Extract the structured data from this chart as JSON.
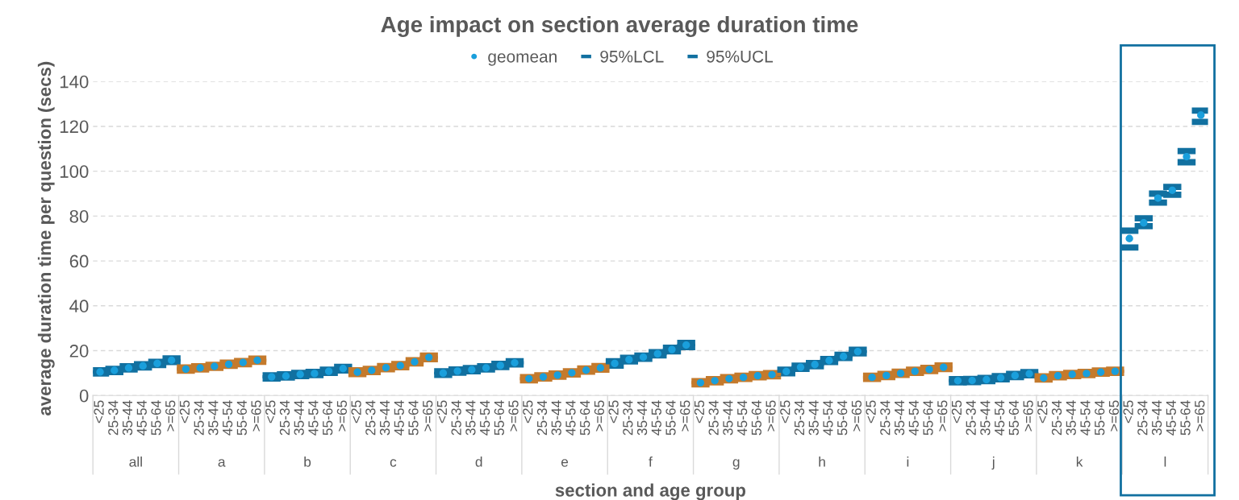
{
  "chart_data": {
    "type": "scatter",
    "title": "Age impact on section average duration time",
    "xlabel": "section and age group",
    "ylabel": "average duration time per question (secs)",
    "categories": [
      "<25",
      "25-34",
      "35-44",
      "45-54",
      "55-64",
      ">=65",
      "<25",
      "25-34",
      "35-44",
      "45-54",
      "55-64",
      ">=65",
      "<25",
      "25-34",
      "35-44",
      "45-54",
      "55-64",
      ">=65",
      "<25",
      "25-34",
      "35-44",
      "45-54",
      "55-64",
      ">=65",
      "<25",
      "25-34",
      "35-44",
      "45-54",
      "55-64",
      ">=65",
      "<25",
      "25-34",
      "35-44",
      "45-54",
      "55-64",
      ">=65",
      "<25",
      "25-34",
      "35-44",
      "45-54",
      "55-64",
      ">=65",
      "<25",
      "25-34",
      "35-44",
      "45-54",
      "55-64",
      ">=65",
      "<25",
      "25-34",
      "35-44",
      "45-54",
      "55-64",
      ">=65",
      "<25",
      "25-34",
      "35-44",
      "45-54",
      "55-64",
      ">=65",
      "<25",
      "25-34",
      "35-44",
      "45-54",
      "55-64",
      ">=65",
      "<25",
      "25-34",
      "35-44",
      "45-54",
      "55-64",
      ">=65",
      "<25",
      "25-34",
      "35-44",
      "45-54",
      "55-64",
      ">=65"
    ],
    "annotations": [
      "all",
      "a",
      "b",
      "c",
      "d",
      "e",
      "f",
      "g",
      "h",
      "i",
      "j",
      "k",
      "l"
    ],
    "series": [
      {
        "name": "geomean",
        "marker": "circle",
        "color": "#1a9fdc",
        "values": [
          10.5,
          11.2,
          12.3,
          13.2,
          14.3,
          15.7,
          11.8,
          12.3,
          13.0,
          13.9,
          14.7,
          15.7,
          8.3,
          8.7,
          9.4,
          9.8,
          10.8,
          12.0,
          10.4,
          11.2,
          12.4,
          13.3,
          15.0,
          17.0,
          10.0,
          10.9,
          11.5,
          12.3,
          13.4,
          14.6,
          7.5,
          8.3,
          9.1,
          10.1,
          11.3,
          12.3,
          14.3,
          16.0,
          17.1,
          18.6,
          20.5,
          22.5,
          5.7,
          6.6,
          7.5,
          8.1,
          8.8,
          9.3,
          10.7,
          12.6,
          13.8,
          15.6,
          17.4,
          19.6,
          8.1,
          8.9,
          9.9,
          10.8,
          11.6,
          12.6,
          6.6,
          6.7,
          7.1,
          7.9,
          8.9,
          9.7,
          7.8,
          8.8,
          9.4,
          9.8,
          10.4,
          10.8,
          70,
          77,
          88,
          91.5,
          106.5,
          125
        ]
      },
      {
        "name": "95%LCL",
        "marker": "square",
        "color": "#1170a0",
        "colors": [
          "#1170a0",
          "#1170a0",
          "#1170a0",
          "#1170a0",
          "#1170a0",
          "#1170a0",
          "#c47a2c",
          "#c47a2c",
          "#c47a2c",
          "#c47a2c",
          "#c47a2c",
          "#c47a2c",
          "#1170a0",
          "#1170a0",
          "#1170a0",
          "#1170a0",
          "#1170a0",
          "#1170a0",
          "#c47a2c",
          "#c47a2c",
          "#c47a2c",
          "#c47a2c",
          "#c47a2c",
          "#c47a2c",
          "#1170a0",
          "#1170a0",
          "#1170a0",
          "#1170a0",
          "#1170a0",
          "#1170a0",
          "#c47a2c",
          "#c47a2c",
          "#c47a2c",
          "#c47a2c",
          "#c47a2c",
          "#c47a2c",
          "#1170a0",
          "#1170a0",
          "#1170a0",
          "#1170a0",
          "#1170a0",
          "#1170a0",
          "#c47a2c",
          "#c47a2c",
          "#c47a2c",
          "#c47a2c",
          "#c47a2c",
          "#c47a2c",
          "#1170a0",
          "#1170a0",
          "#1170a0",
          "#1170a0",
          "#1170a0",
          "#1170a0",
          "#c47a2c",
          "#c47a2c",
          "#c47a2c",
          "#c47a2c",
          "#c47a2c",
          "#c47a2c",
          "#1170a0",
          "#1170a0",
          "#1170a0",
          "#1170a0",
          "#1170a0",
          "#1170a0",
          "#c47a2c",
          "#c47a2c",
          "#c47a2c",
          "#c47a2c",
          "#c47a2c",
          "#c47a2c",
          "#1170a0",
          "#1170a0",
          "#1170a0",
          "#1170a0",
          "#1170a0",
          "#1170a0"
        ],
        "values": [
          9.8,
          10.5,
          11.6,
          12.5,
          13.6,
          14.9,
          11.1,
          11.6,
          12.3,
          13.2,
          14.0,
          15.0,
          7.6,
          8.0,
          8.7,
          9.1,
          10.1,
          11.2,
          9.6,
          10.5,
          11.7,
          12.6,
          14.3,
          16.2,
          9.2,
          10.2,
          10.8,
          11.6,
          12.7,
          13.9,
          6.8,
          7.6,
          8.4,
          9.4,
          10.6,
          11.5,
          13.3,
          15.2,
          16.4,
          17.9,
          19.7,
          21.6,
          5.0,
          5.9,
          6.8,
          7.4,
          8.1,
          8.6,
          9.9,
          11.9,
          13.1,
          14.9,
          16.7,
          18.8,
          7.4,
          8.2,
          9.2,
          10.1,
          10.9,
          11.8,
          5.9,
          6.0,
          6.4,
          7.2,
          8.2,
          9.0,
          7.1,
          8.1,
          8.7,
          9.1,
          9.7,
          10.1,
          66,
          75.5,
          86,
          89.5,
          104,
          122
        ]
      },
      {
        "name": "95%UCL",
        "marker": "square",
        "color": "#1170a0",
        "colors": [
          "#1170a0",
          "#1170a0",
          "#1170a0",
          "#1170a0",
          "#1170a0",
          "#1170a0",
          "#c47a2c",
          "#c47a2c",
          "#c47a2c",
          "#c47a2c",
          "#c47a2c",
          "#c47a2c",
          "#1170a0",
          "#1170a0",
          "#1170a0",
          "#1170a0",
          "#1170a0",
          "#1170a0",
          "#c47a2c",
          "#c47a2c",
          "#c47a2c",
          "#c47a2c",
          "#c47a2c",
          "#c47a2c",
          "#1170a0",
          "#1170a0",
          "#1170a0",
          "#1170a0",
          "#1170a0",
          "#1170a0",
          "#c47a2c",
          "#c47a2c",
          "#c47a2c",
          "#c47a2c",
          "#c47a2c",
          "#c47a2c",
          "#1170a0",
          "#1170a0",
          "#1170a0",
          "#1170a0",
          "#1170a0",
          "#1170a0",
          "#c47a2c",
          "#c47a2c",
          "#c47a2c",
          "#c47a2c",
          "#c47a2c",
          "#c47a2c",
          "#1170a0",
          "#1170a0",
          "#1170a0",
          "#1170a0",
          "#1170a0",
          "#1170a0",
          "#c47a2c",
          "#c47a2c",
          "#c47a2c",
          "#c47a2c",
          "#c47a2c",
          "#c47a2c",
          "#1170a0",
          "#1170a0",
          "#1170a0",
          "#1170a0",
          "#1170a0",
          "#1170a0",
          "#c47a2c",
          "#c47a2c",
          "#c47a2c",
          "#c47a2c",
          "#c47a2c",
          "#c47a2c",
          "#1170a0",
          "#1170a0",
          "#1170a0",
          "#1170a0",
          "#1170a0",
          "#1170a0"
        ],
        "values": [
          11.2,
          11.9,
          13.0,
          13.9,
          15.0,
          16.5,
          12.5,
          13.0,
          13.7,
          14.6,
          15.4,
          16.4,
          9.0,
          9.4,
          10.1,
          10.5,
          11.5,
          12.8,
          11.2,
          11.9,
          13.1,
          14.0,
          15.7,
          17.8,
          10.8,
          11.6,
          12.2,
          13.0,
          14.1,
          15.3,
          8.2,
          9.0,
          9.8,
          10.8,
          12.0,
          13.1,
          15.3,
          16.8,
          17.8,
          19.3,
          21.3,
          23.4,
          6.4,
          7.3,
          8.2,
          8.8,
          9.5,
          10.0,
          11.5,
          13.3,
          14.5,
          16.3,
          18.1,
          20.4,
          8.8,
          9.6,
          10.6,
          11.5,
          12.3,
          13.4,
          7.3,
          7.4,
          7.8,
          8.6,
          9.6,
          10.4,
          8.5,
          9.5,
          10.1,
          10.5,
          11.1,
          11.5,
          73.5,
          79,
          90,
          93,
          109,
          127
        ]
      }
    ],
    "ylim": [
      0,
      140
    ],
    "yticks": [
      0,
      20,
      40,
      60,
      80,
      100,
      120,
      140
    ],
    "grid": "y",
    "legend": "top"
  }
}
